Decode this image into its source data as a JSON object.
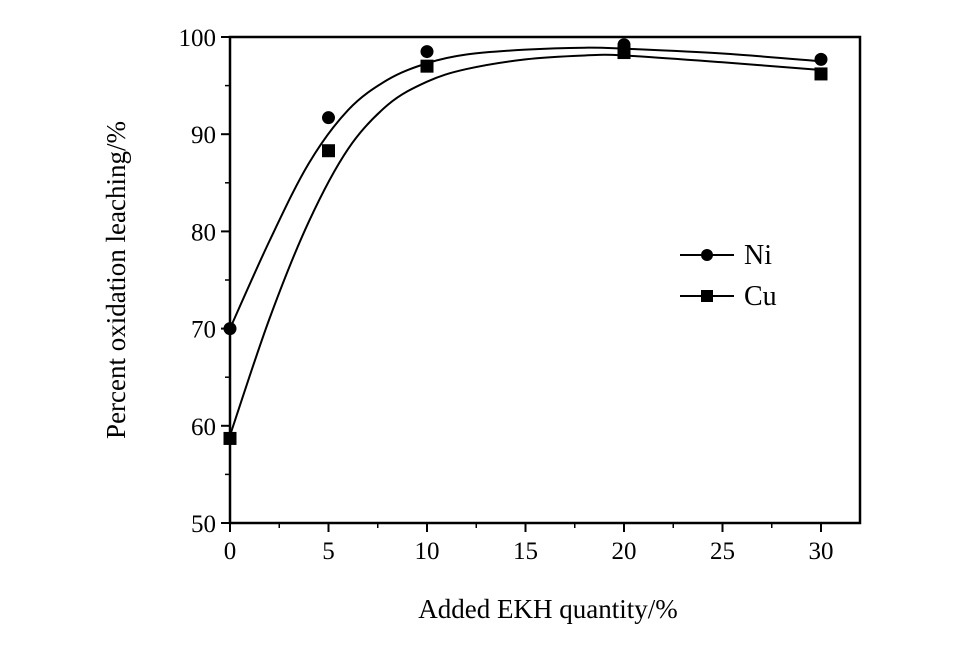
{
  "chart_data": {
    "type": "scatter",
    "title": "",
    "xlabel": "Added EKH quantity/%",
    "ylabel": "Percent oxidation leaching/%",
    "xlim": [
      0,
      32
    ],
    "ylim": [
      50,
      100
    ],
    "x_ticks": [
      0,
      5,
      10,
      15,
      20,
      25,
      30
    ],
    "y_ticks": [
      50,
      60,
      70,
      80,
      90,
      100
    ],
    "x_tick_labels": [
      "0",
      "5",
      "10",
      "15",
      "20",
      "25",
      "30"
    ],
    "y_tick_labels": [
      "50",
      "60",
      "70",
      "80",
      "90",
      "100"
    ],
    "grid": false,
    "legend": {
      "position": "center-right",
      "entries": [
        "Ni",
        "Cu"
      ]
    },
    "series": [
      {
        "name": "Ni",
        "marker": "circle",
        "x": [
          0,
          5,
          10,
          20,
          30
        ],
        "y": [
          70,
          91.7,
          98.5,
          99.2,
          97.7
        ],
        "fit_curve": [
          [
            0,
            70
          ],
          [
            2,
            79
          ],
          [
            4,
            87
          ],
          [
            6,
            92.5
          ],
          [
            8,
            95.6
          ],
          [
            10,
            97.3
          ],
          [
            12,
            98.2
          ],
          [
            15,
            98.7
          ],
          [
            18,
            98.9
          ],
          [
            20,
            98.8
          ],
          [
            25,
            98.3
          ],
          [
            30,
            97.5
          ]
        ]
      },
      {
        "name": "Cu",
        "marker": "square",
        "x": [
          0,
          5,
          10,
          20,
          30
        ],
        "y": [
          58.7,
          88.3,
          97.0,
          98.4,
          96.2
        ],
        "fit_curve": [
          [
            0,
            59
          ],
          [
            2,
            71
          ],
          [
            4,
            81
          ],
          [
            6,
            88.5
          ],
          [
            8,
            93
          ],
          [
            10,
            95.4
          ],
          [
            12,
            96.7
          ],
          [
            15,
            97.7
          ],
          [
            18,
            98.1
          ],
          [
            20,
            98.1
          ],
          [
            25,
            97.4
          ],
          [
            30,
            96.6
          ]
        ]
      }
    ]
  }
}
